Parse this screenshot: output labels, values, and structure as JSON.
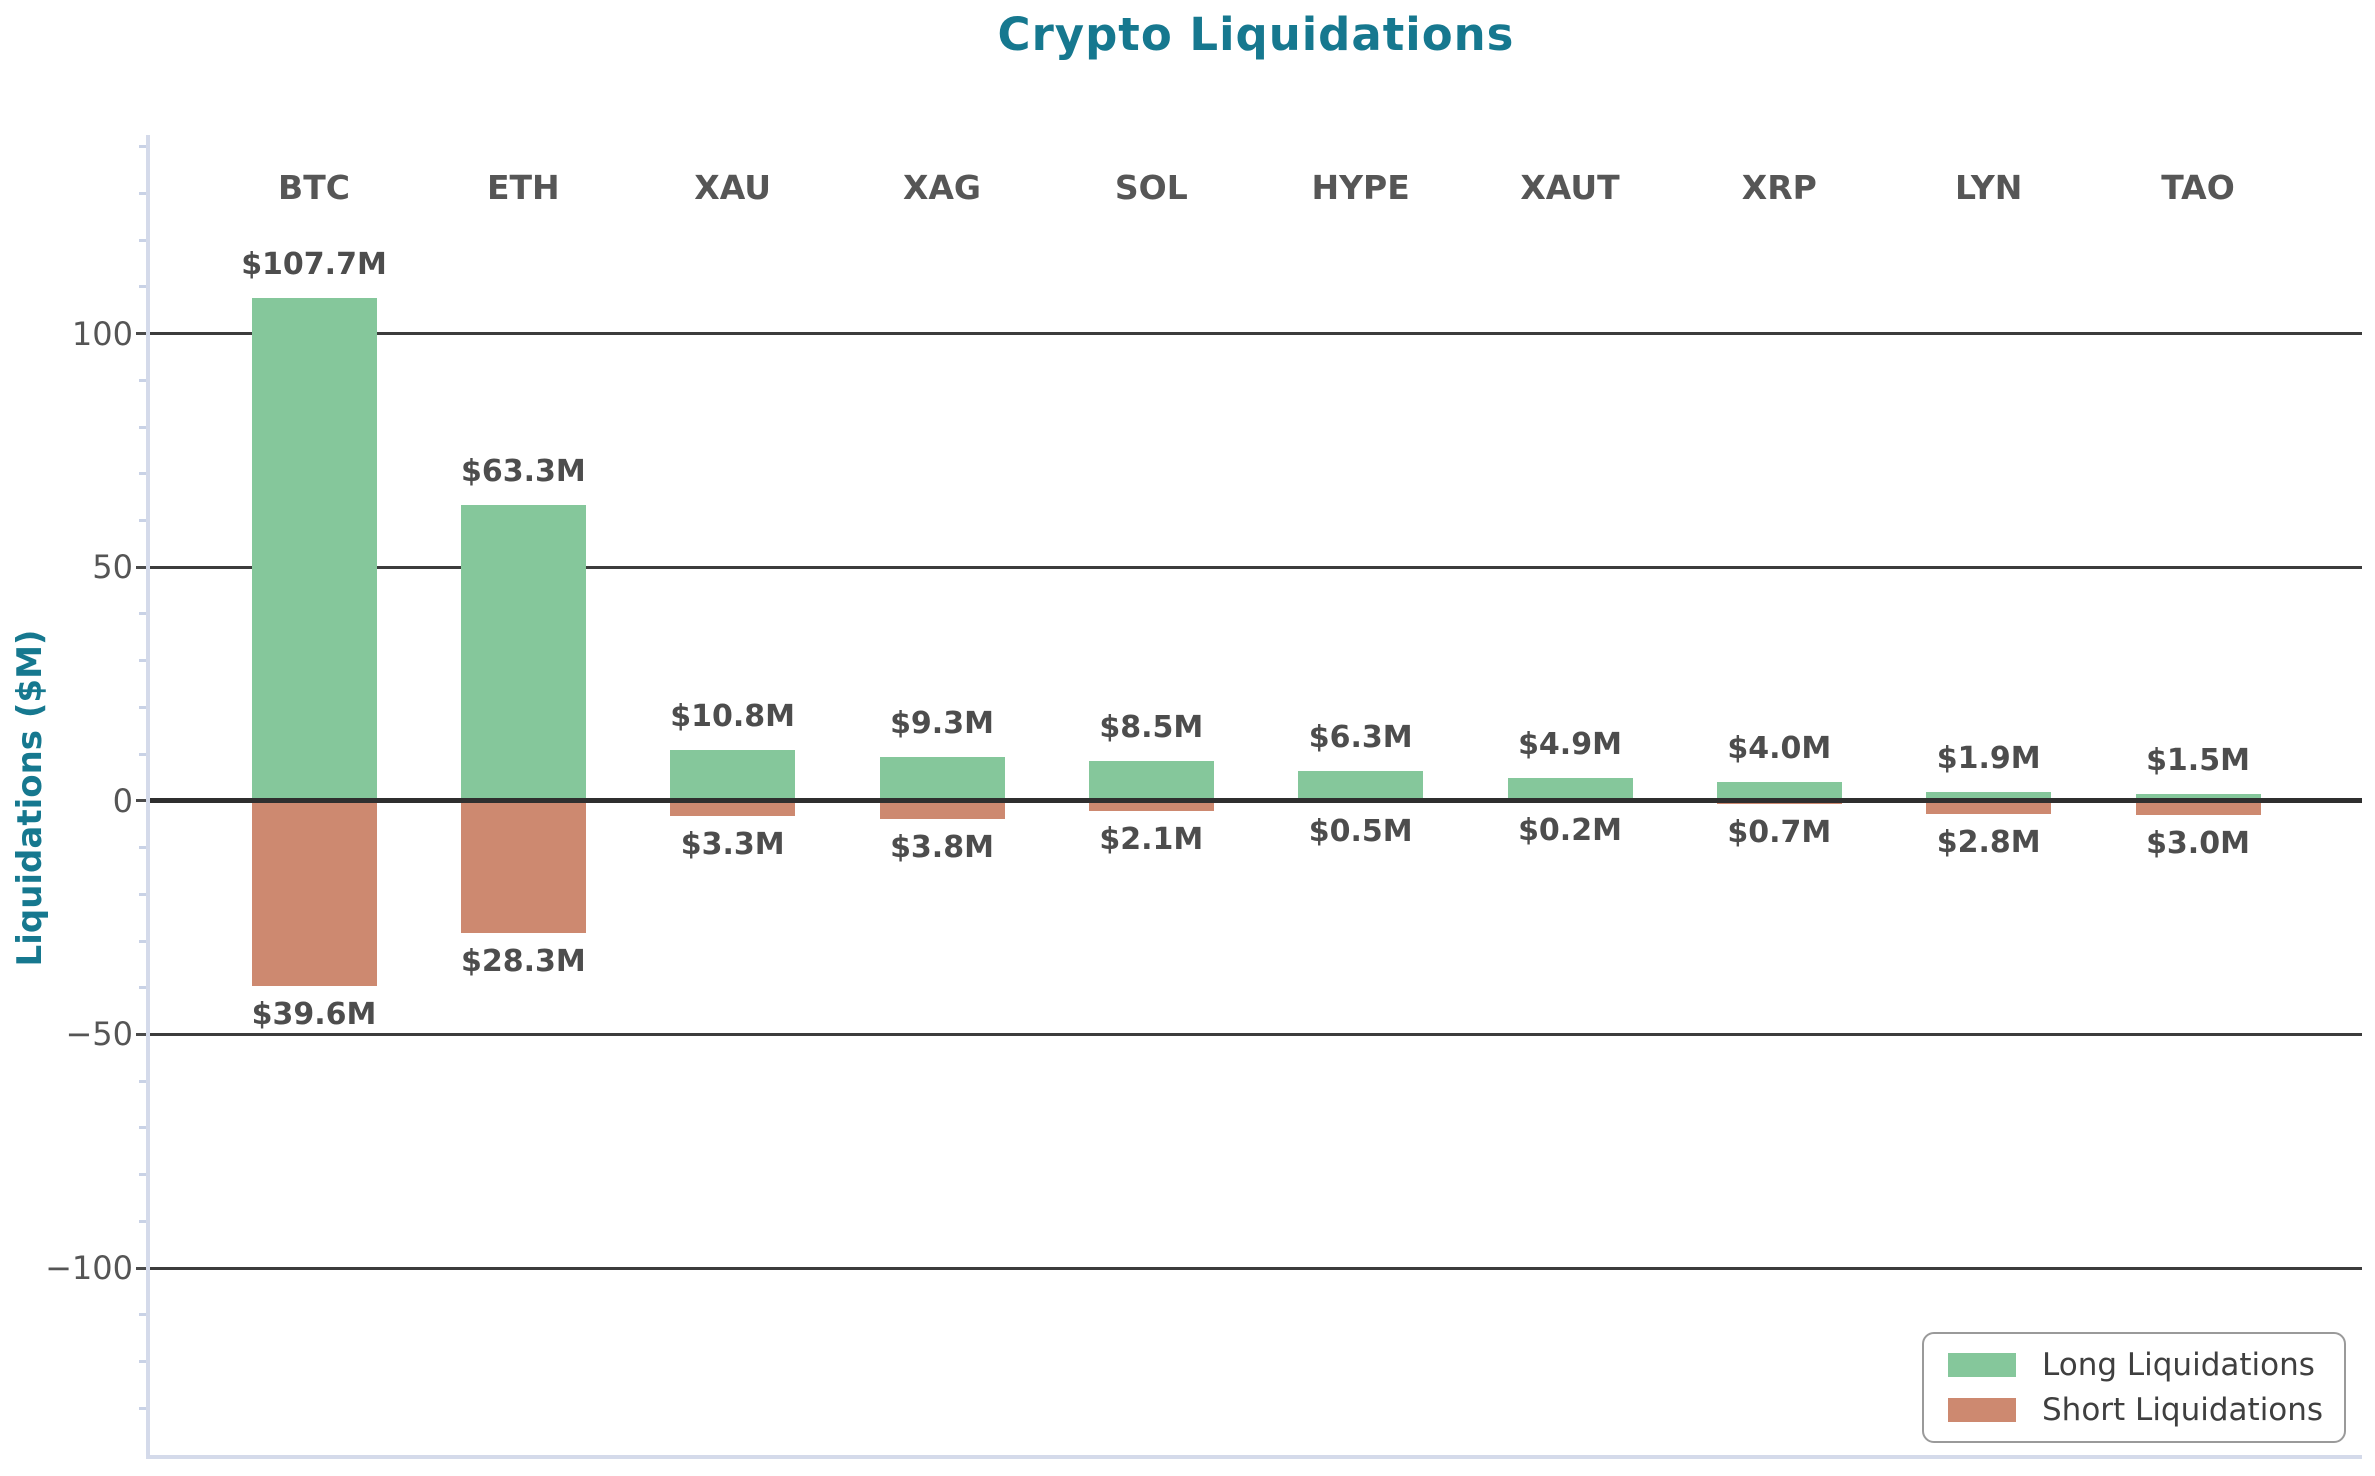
{
  "chart_data": {
    "type": "bar",
    "title": "Crypto Liquidations",
    "ylabel": "Liquidations ($M)",
    "categories": [
      "BTC",
      "ETH",
      "XAU",
      "XAG",
      "SOL",
      "HYPE",
      "XAUT",
      "XRP",
      "LYN",
      "TAO"
    ],
    "series": [
      {
        "name": "Long Liquidations",
        "direction": "up",
        "color": "#85C79B",
        "values": [
          107.7,
          63.3,
          10.8,
          9.3,
          8.5,
          6.3,
          4.9,
          4.0,
          1.9,
          1.5
        ],
        "labels": [
          "$107.7M",
          "$63.3M",
          "$10.8M",
          "$9.3M",
          "$8.5M",
          "$6.3M",
          "$4.9M",
          "$4.0M",
          "$1.9M",
          "$1.5M"
        ]
      },
      {
        "name": "Short Liquidations",
        "direction": "down",
        "color": "#CD8970",
        "values": [
          39.6,
          28.3,
          3.3,
          3.8,
          2.1,
          0.5,
          0.2,
          0.7,
          2.8,
          3.0
        ],
        "labels": [
          "$39.6M",
          "$28.3M",
          "$3.3M",
          "$3.8M",
          "$2.1M",
          "$0.5M",
          "$0.2M",
          "$0.7M",
          "$2.8M",
          "$3.0M"
        ]
      }
    ],
    "yticks": [
      {
        "value": 100,
        "label": "100"
      },
      {
        "value": 50,
        "label": "50"
      },
      {
        "value": 0,
        "label": "0"
      },
      {
        "value": -50,
        "label": "−50"
      },
      {
        "value": -100,
        "label": "−100"
      }
    ],
    "ylim": [
      -140,
      142.5
    ],
    "y_minor_step": 10,
    "grid": true,
    "legend_position": "lower right",
    "colors": {
      "title": "#16788F",
      "axis_label": "#16788F",
      "tick_label": "#555555",
      "category_label": "#565656",
      "value_label": "#4D4D4D",
      "gridline": "#3C3C3C",
      "zero_line": "#2F2F2F",
      "spine": "#D4DAEA",
      "minor_tick": "#C9D2E6",
      "major_tick": "#4A4A4A",
      "legend_border": "#9A9A9A",
      "legend_text": "#3F3F3F",
      "background": "#FFFFFF"
    }
  }
}
